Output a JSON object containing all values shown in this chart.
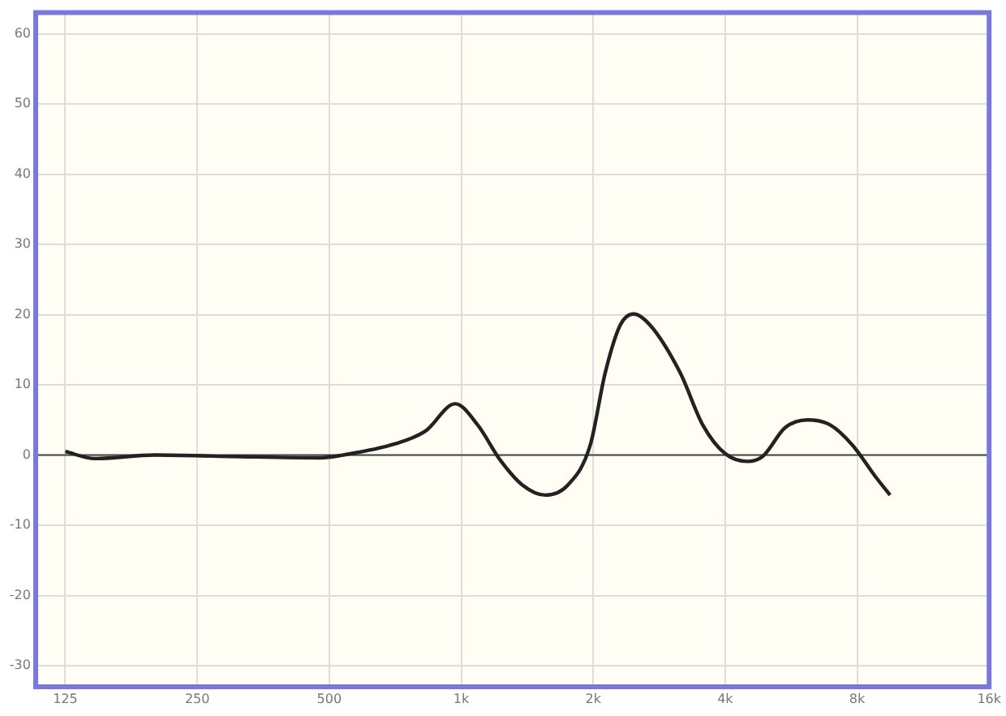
{
  "chart_data": {
    "type": "line",
    "x": [
      125,
      146,
      200,
      297,
      477,
      537,
      707,
      828,
      969,
      1090,
      1227,
      1381,
      1554,
      1749,
      1969,
      2130,
      2305,
      2474,
      2697,
      3159,
      3555,
      4000,
      4500,
      4870,
      5482,
      6169,
      6940,
      7810,
      8790,
      9510
    ],
    "series": [
      {
        "color": "#222222",
        "values": [
          0.5,
          -0.5,
          0,
          -0.2,
          -0.4,
          0,
          1.6,
          3.4,
          7.3,
          4.3,
          -0.7,
          -4.3,
          -5.7,
          -4.3,
          1.4,
          11.7,
          18.5,
          20.1,
          18.5,
          11.7,
          4.3,
          0.2,
          -0.9,
          -0.2,
          3.9,
          5,
          4.3,
          1.4,
          -3,
          -5.7
        ]
      }
    ],
    "log": "x",
    "xlim": [
      107,
      16000
    ],
    "xticks": [
      125,
      250,
      500,
      {
        "value": 1000,
        "label": "1k"
      },
      {
        "value": 2000,
        "label": "2k"
      },
      {
        "value": 4000,
        "label": "4k"
      },
      {
        "value": 8000,
        "label": "8k"
      },
      {
        "value": 16000,
        "label": "16k"
      }
    ],
    "ylim": [
      -33,
      63
    ],
    "yticks": [
      -30,
      -20,
      -10,
      0,
      10,
      20,
      30,
      40,
      50,
      60
    ],
    "grid": true,
    "marker": "none",
    "line_style": "solid",
    "ref_lines": [
      {
        "axis": "y",
        "value": 0,
        "color": "#444444"
      }
    ]
  }
}
